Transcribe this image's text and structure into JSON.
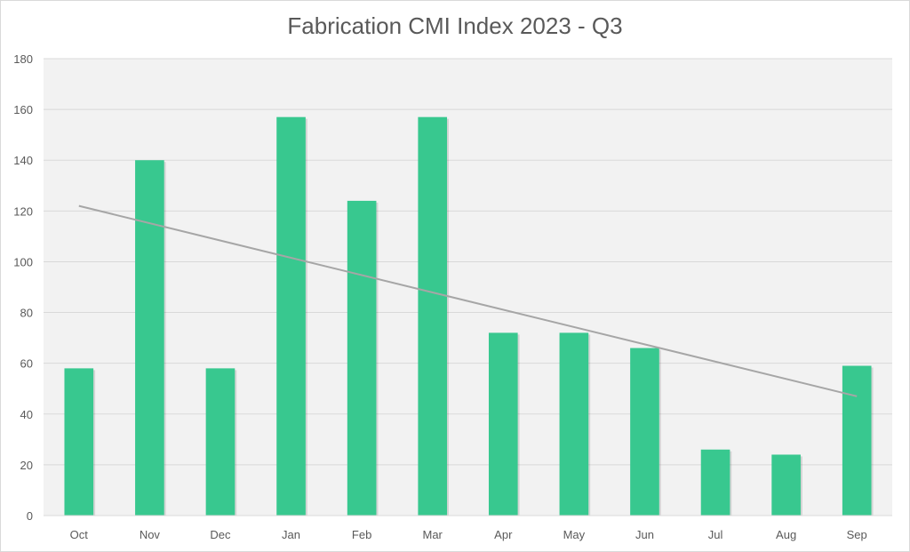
{
  "chart_data": {
    "type": "bar",
    "title": "Fabrication CMI Index 2023 - Q3",
    "xlabel": "",
    "ylabel": "",
    "categories": [
      "Oct",
      "Nov",
      "Dec",
      "Jan",
      "Feb",
      "Mar",
      "Apr",
      "May",
      "Jun",
      "Jul",
      "Aug",
      "Sep"
    ],
    "series": [
      {
        "values": [
          58,
          140,
          58,
          157,
          124,
          157,
          72,
          72,
          66,
          26,
          24,
          59
        ]
      }
    ],
    "trendline": {
      "type": "linear",
      "start": 122,
      "end": 47
    },
    "ylim": [
      0,
      180
    ],
    "yticks": [
      0,
      20,
      40,
      60,
      80,
      100,
      120,
      140,
      160,
      180
    ],
    "grid": true,
    "legend": "none",
    "colors": {
      "bar": "#38c88f",
      "trend": "#a6a6a6",
      "plot_bg": "#f2f2f2",
      "grid": "#d9d9d9",
      "text": "#595959"
    }
  }
}
